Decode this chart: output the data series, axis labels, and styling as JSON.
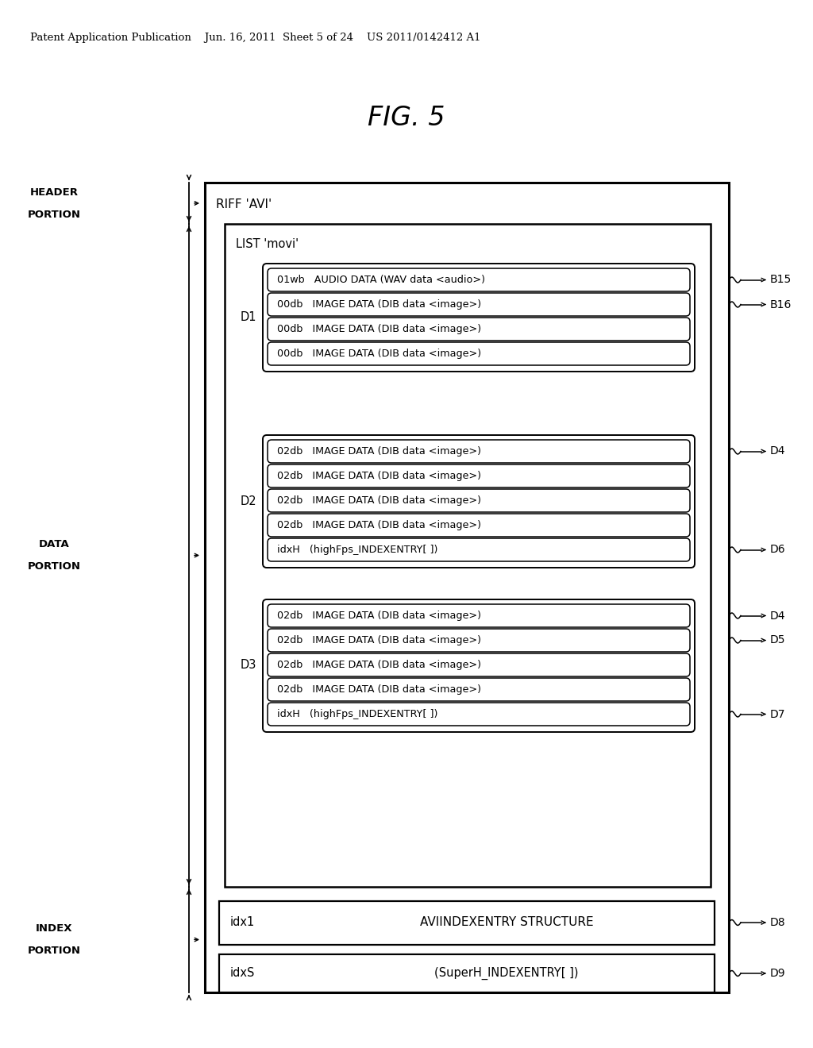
{
  "title": "FIG. 5",
  "header_line": "Patent Application Publication    Jun. 16, 2011  Sheet 5 of 24    US 2011/0142412 A1",
  "bg_color": "#ffffff",
  "riff_label": "RIFF 'AVI'",
  "list_label": "LIST 'movi'",
  "rows_d1": [
    "01wb   AUDIO DATA (WAV data <audio>)",
    "00db   IMAGE DATA (DIB data <image>)",
    "00db   IMAGE DATA (DIB data <image>)",
    "00db   IMAGE DATA (DIB data <image>)"
  ],
  "rows_d2": [
    "02db   IMAGE DATA (DIB data <image>)",
    "02db   IMAGE DATA (DIB data <image>)",
    "02db   IMAGE DATA (DIB data <image>)",
    "02db   IMAGE DATA (DIB data <image>)",
    "idxH   (highFps_INDEXENTRY[ ])"
  ],
  "rows_d3": [
    "02db   IMAGE DATA (DIB data <image>)",
    "02db   IMAGE DATA (DIB data <image>)",
    "02db   IMAGE DATA (DIB data <image>)",
    "02db   IMAGE DATA (DIB data <image>)",
    "idxH   (highFps_INDEXENTRY[ ])"
  ],
  "idx1_key": "idx1",
  "idx1_content": "AVIINDEXENTRY STRUCTURE",
  "idxs_key": "idxS",
  "idxs_content": "(SuperH_INDEXENTRY[ ])"
}
